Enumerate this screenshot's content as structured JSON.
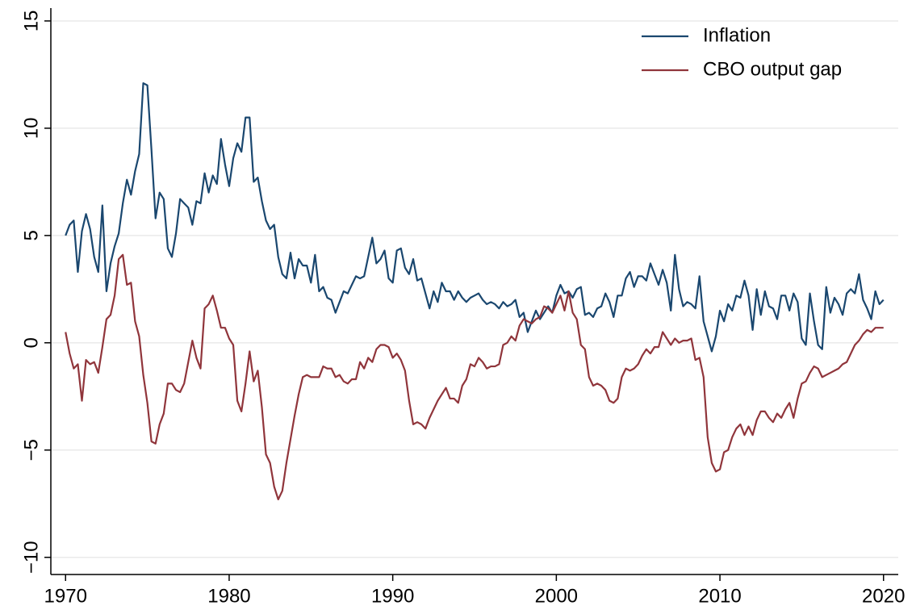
{
  "chart_data": {
    "type": "line",
    "x": [
      1970,
      1970.25,
      1970.5,
      1970.75,
      1971,
      1971.25,
      1971.5,
      1971.75,
      1972,
      1972.25,
      1972.5,
      1972.75,
      1973,
      1973.25,
      1973.5,
      1973.75,
      1974,
      1974.25,
      1974.5,
      1974.75,
      1975,
      1975.25,
      1975.5,
      1975.75,
      1976,
      1976.25,
      1976.5,
      1976.75,
      1977,
      1977.25,
      1977.5,
      1977.75,
      1978,
      1978.25,
      1978.5,
      1978.75,
      1979,
      1979.25,
      1979.5,
      1979.75,
      1980,
      1980.25,
      1980.5,
      1980.75,
      1981,
      1981.25,
      1981.5,
      1981.75,
      1982,
      1982.25,
      1982.5,
      1982.75,
      1983,
      1983.25,
      1983.5,
      1983.75,
      1984,
      1984.25,
      1984.5,
      1984.75,
      1985,
      1985.25,
      1985.5,
      1985.75,
      1986,
      1986.25,
      1986.5,
      1986.75,
      1987,
      1987.25,
      1987.5,
      1987.75,
      1988,
      1988.25,
      1988.5,
      1988.75,
      1989,
      1989.25,
      1989.5,
      1989.75,
      1990,
      1990.25,
      1990.5,
      1990.75,
      1991,
      1991.25,
      1991.5,
      1991.75,
      1992,
      1992.25,
      1992.5,
      1992.75,
      1993,
      1993.25,
      1993.5,
      1993.75,
      1994,
      1994.25,
      1994.5,
      1994.75,
      1995,
      1995.25,
      1995.5,
      1995.75,
      1996,
      1996.25,
      1996.5,
      1996.75,
      1997,
      1997.25,
      1997.5,
      1997.75,
      1998,
      1998.25,
      1998.5,
      1998.75,
      1999,
      1999.25,
      1999.5,
      1999.75,
      2000,
      2000.25,
      2000.5,
      2000.75,
      2001,
      2001.25,
      2001.5,
      2001.75,
      2002,
      2002.25,
      2002.5,
      2002.75,
      2003,
      2003.25,
      2003.5,
      2003.75,
      2004,
      2004.25,
      2004.5,
      2004.75,
      2005,
      2005.25,
      2005.5,
      2005.75,
      2006,
      2006.25,
      2006.5,
      2006.75,
      2007,
      2007.25,
      2007.5,
      2007.75,
      2008,
      2008.25,
      2008.5,
      2008.75,
      2009,
      2009.25,
      2009.5,
      2009.75,
      2010,
      2010.25,
      2010.5,
      2010.75,
      2011,
      2011.25,
      2011.5,
      2011.75,
      2012,
      2012.25,
      2012.5,
      2012.75,
      2013,
      2013.25,
      2013.5,
      2013.75,
      2014,
      2014.25,
      2014.5,
      2014.75,
      2015,
      2015.25,
      2015.5,
      2015.75,
      2016,
      2016.25,
      2016.5,
      2016.75,
      2017,
      2017.25,
      2017.5,
      2017.75,
      2018,
      2018.25,
      2018.5,
      2018.75,
      2019,
      2019.25,
      2019.5,
      2019.75,
      2020
    ],
    "series": [
      {
        "name": "Inflation",
        "color": "#1a476f",
        "values": [
          5.0,
          5.5,
          5.7,
          3.3,
          5.2,
          6.0,
          5.3,
          4.0,
          3.3,
          6.4,
          2.4,
          3.7,
          4.5,
          5.1,
          6.5,
          7.6,
          6.9,
          8.0,
          8.8,
          12.1,
          12.0,
          9.0,
          5.8,
          7.0,
          6.7,
          4.4,
          4.0,
          5.1,
          6.7,
          6.5,
          6.3,
          5.5,
          6.6,
          6.5,
          7.9,
          7.0,
          7.8,
          7.4,
          9.5,
          8.3,
          7.3,
          8.6,
          9.3,
          8.9,
          10.5,
          10.5,
          7.5,
          7.7,
          6.6,
          5.7,
          5.3,
          5.5,
          4.0,
          3.2,
          3.0,
          4.2,
          3.0,
          3.9,
          3.6,
          3.6,
          2.8,
          4.1,
          2.4,
          2.6,
          2.1,
          2.0,
          1.4,
          1.9,
          2.4,
          2.3,
          2.7,
          3.1,
          3.0,
          3.1,
          4.0,
          4.9,
          3.7,
          3.9,
          4.3,
          3.0,
          2.8,
          4.3,
          4.4,
          3.5,
          3.2,
          3.9,
          2.9,
          3.0,
          2.3,
          1.6,
          2.4,
          1.9,
          2.8,
          2.4,
          2.4,
          2.0,
          2.4,
          2.1,
          1.9,
          2.1,
          2.2,
          2.3,
          2.0,
          1.8,
          1.9,
          1.8,
          1.6,
          1.9,
          1.7,
          1.8,
          2.0,
          1.2,
          1.4,
          0.5,
          1.0,
          1.5,
          1.1,
          1.4,
          1.7,
          1.4,
          2.2,
          2.7,
          2.3,
          2.4,
          2.1,
          2.5,
          2.6,
          1.3,
          1.4,
          1.2,
          1.6,
          1.7,
          2.3,
          1.9,
          1.2,
          2.2,
          2.2,
          3.0,
          3.3,
          2.6,
          3.1,
          3.1,
          2.9,
          3.7,
          3.2,
          2.7,
          3.4,
          2.8,
          1.5,
          4.1,
          2.5,
          1.7,
          1.9,
          1.8,
          1.6,
          3.1,
          1.0,
          0.3,
          -0.4,
          0.3,
          1.5,
          1.0,
          1.8,
          1.5,
          2.2,
          2.1,
          2.9,
          2.2,
          0.6,
          2.5,
          1.3,
          2.4,
          1.7,
          1.6,
          1.1,
          2.2,
          2.2,
          1.5,
          2.3,
          1.9,
          0.2,
          -0.1,
          2.3,
          1.0,
          -0.1,
          -0.3,
          2.6,
          1.4,
          2.1,
          1.8,
          1.3,
          2.3,
          2.5,
          2.3,
          3.2,
          2.0,
          1.6,
          1.1,
          2.4,
          1.8,
          2.0
        ]
      },
      {
        "name": "CBO output gap",
        "color": "#90353b",
        "values": [
          0.5,
          -0.5,
          -1.2,
          -1.0,
          -2.7,
          -0.8,
          -1.0,
          -0.9,
          -1.4,
          -0.2,
          1.1,
          1.3,
          2.2,
          3.9,
          4.1,
          2.7,
          2.8,
          1.0,
          0.3,
          -1.5,
          -2.8,
          -4.6,
          -4.7,
          -3.8,
          -3.3,
          -1.9,
          -1.9,
          -2.2,
          -2.3,
          -1.9,
          -0.9,
          0.1,
          -0.7,
          -1.2,
          1.6,
          1.8,
          2.2,
          1.5,
          0.7,
          0.7,
          0.2,
          -0.1,
          -2.7,
          -3.2,
          -1.9,
          -0.4,
          -1.8,
          -1.3,
          -3.0,
          -5.2,
          -5.6,
          -6.7,
          -7.3,
          -6.9,
          -5.6,
          -4.5,
          -3.4,
          -2.4,
          -1.6,
          -1.5,
          -1.6,
          -1.6,
          -1.6,
          -1.1,
          -1.2,
          -1.2,
          -1.6,
          -1.5,
          -1.8,
          -1.9,
          -1.7,
          -1.7,
          -0.9,
          -1.2,
          -0.7,
          -0.9,
          -0.3,
          -0.1,
          -0.1,
          -0.2,
          -0.7,
          -0.5,
          -0.8,
          -1.3,
          -2.7,
          -3.8,
          -3.7,
          -3.8,
          -4.0,
          -3.5,
          -3.1,
          -2.7,
          -2.4,
          -2.1,
          -2.6,
          -2.6,
          -2.8,
          -2.0,
          -1.7,
          -1.0,
          -1.1,
          -0.7,
          -0.9,
          -1.2,
          -1.1,
          -1.1,
          -1.0,
          -0.1,
          0.0,
          0.3,
          0.1,
          0.8,
          1.1,
          1.0,
          0.9,
          1.1,
          1.2,
          1.7,
          1.6,
          1.4,
          1.8,
          2.2,
          1.5,
          2.4,
          1.4,
          1.1,
          -0.1,
          -0.3,
          -1.6,
          -2.0,
          -1.9,
          -2.0,
          -2.2,
          -2.7,
          -2.8,
          -2.6,
          -1.6,
          -1.2,
          -1.3,
          -1.2,
          -1.0,
          -0.6,
          -0.3,
          -0.5,
          -0.2,
          -0.2,
          0.5,
          0.2,
          -0.1,
          0.2,
          0.0,
          0.1,
          0.1,
          0.2,
          -0.8,
          -0.7,
          -1.6,
          -4.4,
          -5.6,
          -6.0,
          -5.9,
          -5.1,
          -5.0,
          -4.4,
          -4.0,
          -3.8,
          -4.3,
          -3.9,
          -4.3,
          -3.6,
          -3.2,
          -3.2,
          -3.5,
          -3.7,
          -3.3,
          -3.5,
          -3.1,
          -2.8,
          -3.5,
          -2.6,
          -1.9,
          -1.8,
          -1.4,
          -1.1,
          -1.2,
          -1.6,
          -1.5,
          -1.4,
          -1.3,
          -1.2,
          -1.0,
          -0.9,
          -0.5,
          -0.1,
          0.1,
          0.4,
          0.6,
          0.5,
          0.7,
          0.7,
          0.7
        ]
      }
    ],
    "xlim": [
      1969.1,
      2020.9
    ],
    "xticks": [
      1970,
      1980,
      1990,
      2000,
      2010,
      2020
    ],
    "ylim": [
      -10.8,
      15.6
    ],
    "yticks": [
      {
        "value": -10,
        "label": "−10"
      },
      {
        "value": -5,
        "label": "−5"
      },
      0,
      5,
      10,
      15
    ],
    "grid": true,
    "legend": "top-right"
  }
}
